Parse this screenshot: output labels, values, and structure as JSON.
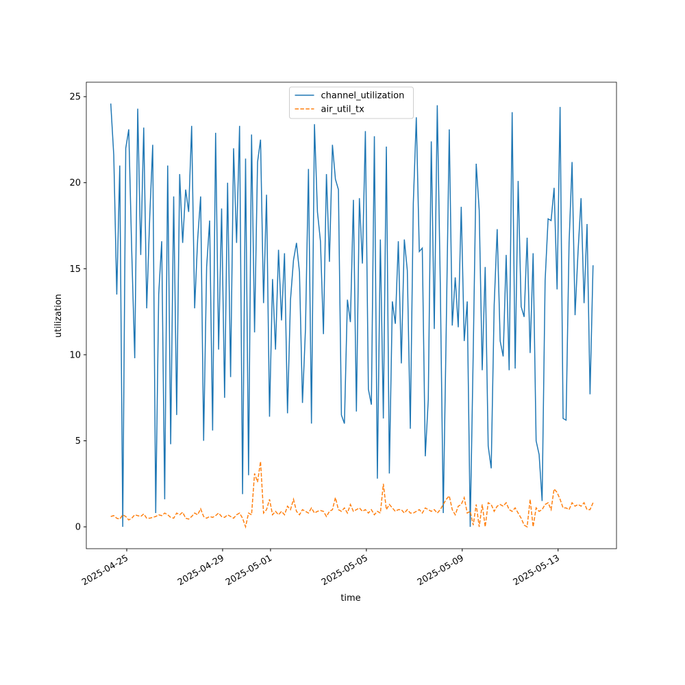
{
  "chart_data": {
    "type": "line",
    "xlabel": "time",
    "ylabel": "utilization",
    "x": [
      "2025-04-24T08:00",
      "2025-04-24T11:00",
      "2025-04-24T14:00",
      "2025-04-24T17:00",
      "2025-04-24T20:00",
      "2025-04-24T23:00",
      "2025-04-25T02:00",
      "2025-04-25T05:00",
      "2025-04-25T08:00",
      "2025-04-25T11:00",
      "2025-04-25T14:00",
      "2025-04-25T17:00",
      "2025-04-25T20:00",
      "2025-04-25T23:00",
      "2025-04-26T02:00",
      "2025-04-26T05:00",
      "2025-04-26T08:00",
      "2025-04-26T11:00",
      "2025-04-26T14:00",
      "2025-04-26T17:00",
      "2025-04-26T20:00",
      "2025-04-26T23:00",
      "2025-04-27T02:00",
      "2025-04-27T05:00",
      "2025-04-27T08:00",
      "2025-04-27T11:00",
      "2025-04-27T14:00",
      "2025-04-27T17:00",
      "2025-04-27T20:00",
      "2025-04-27T23:00",
      "2025-04-28T02:00",
      "2025-04-28T05:00",
      "2025-04-28T08:00",
      "2025-04-28T11:00",
      "2025-04-28T14:00",
      "2025-04-28T17:00",
      "2025-04-28T20:00",
      "2025-04-28T23:00",
      "2025-04-29T02:00",
      "2025-04-29T05:00",
      "2025-04-29T08:00",
      "2025-04-29T11:00",
      "2025-04-29T14:00",
      "2025-04-29T17:00",
      "2025-04-29T20:00",
      "2025-04-29T23:00",
      "2025-04-30T02:00",
      "2025-04-30T05:00",
      "2025-04-30T08:00",
      "2025-04-30T11:00",
      "2025-04-30T14:00",
      "2025-04-30T17:00",
      "2025-04-30T20:00",
      "2025-04-30T23:00",
      "2025-05-01T02:00",
      "2025-05-01T05:00",
      "2025-05-01T08:00",
      "2025-05-01T11:00",
      "2025-05-01T14:00",
      "2025-05-01T17:00",
      "2025-05-01T20:00",
      "2025-05-01T23:00",
      "2025-05-02T02:00",
      "2025-05-02T05:00",
      "2025-05-02T08:00",
      "2025-05-02T11:00",
      "2025-05-02T14:00",
      "2025-05-02T17:00",
      "2025-05-02T20:00",
      "2025-05-02T23:00",
      "2025-05-03T02:00",
      "2025-05-03T05:00",
      "2025-05-03T08:00",
      "2025-05-03T11:00",
      "2025-05-03T14:00",
      "2025-05-03T17:00",
      "2025-05-03T20:00",
      "2025-05-03T23:00",
      "2025-05-04T02:00",
      "2025-05-04T05:00",
      "2025-05-04T08:00",
      "2025-05-04T11:00",
      "2025-05-04T14:00",
      "2025-05-04T17:00",
      "2025-05-04T20:00",
      "2025-05-04T23:00",
      "2025-05-05T02:00",
      "2025-05-05T05:00",
      "2025-05-05T08:00",
      "2025-05-05T11:00",
      "2025-05-05T14:00",
      "2025-05-05T17:00",
      "2025-05-05T20:00",
      "2025-05-05T23:00",
      "2025-05-06T02:00",
      "2025-05-06T05:00",
      "2025-05-06T08:00",
      "2025-05-06T11:00",
      "2025-05-06T14:00",
      "2025-05-06T17:00",
      "2025-05-06T20:00",
      "2025-05-06T23:00",
      "2025-05-07T02:00",
      "2025-05-07T05:00",
      "2025-05-07T08:00",
      "2025-05-07T11:00",
      "2025-05-07T14:00",
      "2025-05-07T17:00",
      "2025-05-07T20:00",
      "2025-05-07T23:00",
      "2025-05-08T02:00",
      "2025-05-08T05:00",
      "2025-05-08T08:00",
      "2025-05-08T11:00",
      "2025-05-08T14:00",
      "2025-05-08T17:00",
      "2025-05-08T20:00",
      "2025-05-08T23:00",
      "2025-05-09T02:00",
      "2025-05-09T05:00",
      "2025-05-09T08:00",
      "2025-05-09T11:00",
      "2025-05-09T14:00",
      "2025-05-09T17:00",
      "2025-05-09T20:00",
      "2025-05-09T23:00",
      "2025-05-10T02:00",
      "2025-05-10T05:00",
      "2025-05-10T08:00",
      "2025-05-10T11:00",
      "2025-05-10T14:00",
      "2025-05-10T17:00",
      "2025-05-10T20:00",
      "2025-05-10T23:00",
      "2025-05-11T02:00",
      "2025-05-11T05:00",
      "2025-05-11T08:00",
      "2025-05-11T11:00",
      "2025-05-11T14:00",
      "2025-05-11T17:00",
      "2025-05-11T20:00",
      "2025-05-11T23:00",
      "2025-05-12T02:00",
      "2025-05-12T05:00",
      "2025-05-12T08:00",
      "2025-05-12T11:00",
      "2025-05-12T14:00",
      "2025-05-12T17:00",
      "2025-05-12T20:00",
      "2025-05-12T23:00",
      "2025-05-13T02:00",
      "2025-05-13T05:00",
      "2025-05-13T08:00",
      "2025-05-13T11:00",
      "2025-05-13T14:00",
      "2025-05-13T17:00",
      "2025-05-13T20:00",
      "2025-05-13T23:00",
      "2025-05-14T02:00",
      "2025-05-14T05:00",
      "2025-05-14T08:00",
      "2025-05-14T11:00"
    ],
    "series": [
      {
        "name": "channel_utilization",
        "color": "#1f77b4",
        "linestyle": "solid",
        "values": [
          24.6,
          21.6,
          13.5,
          21,
          0,
          22,
          23.1,
          16,
          9.8,
          24.3,
          15.8,
          23.2,
          12.7,
          18,
          22.2,
          0.8,
          13.5,
          16.6,
          1.6,
          21,
          4.8,
          19.2,
          6.5,
          20.5,
          16.5,
          19.6,
          18.3,
          23.3,
          12.7,
          16.7,
          19.2,
          5,
          15.1,
          17.8,
          5.6,
          22.9,
          10.3,
          18.5,
          7.5,
          20,
          8.7,
          22,
          16.5,
          23.3,
          1.9,
          21.4,
          3,
          22.8,
          11.3,
          21.2,
          22.5,
          13,
          19.3,
          6.4,
          14.4,
          10.3,
          16.1,
          12,
          15.9,
          6.6,
          13.2,
          15.5,
          16.5,
          14.8,
          7.2,
          11.5,
          20.8,
          6,
          23.4,
          18.3,
          16.6,
          11.2,
          20.5,
          15.4,
          22.2,
          20.2,
          19.6,
          6.5,
          6,
          13.2,
          11.9,
          19,
          6.7,
          19.1,
          15.3,
          23,
          8,
          7.1,
          22.7,
          2.8,
          16.7,
          6.3,
          22.1,
          3.1,
          13.1,
          11.8,
          16.6,
          9.5,
          16.7,
          14.9,
          5.7,
          18.8,
          23.8,
          16,
          16.2,
          4.1,
          7.4,
          22.4,
          11.5,
          24.5,
          14.2,
          0.8,
          11.6,
          23.1,
          11.7,
          14.5,
          11.6,
          18.6,
          10.8,
          13.1,
          0,
          10.1,
          21.1,
          18.4,
          9.1,
          15.1,
          4.7,
          3.4,
          12.9,
          17.3,
          10.8,
          9.9,
          15.8,
          9.1,
          24.1,
          9.2,
          20.1,
          12.8,
          12.2,
          16.8,
          10.1,
          15.9,
          5,
          4.2,
          1.5,
          14.3,
          17.9,
          17.8,
          19.7,
          13.8,
          24.4,
          6.3,
          6.2,
          16.5,
          21.2,
          12.3,
          16,
          19.1,
          13,
          17.6,
          7.7,
          15.2
        ]
      },
      {
        "name": "air_util_tx",
        "color": "#ff7f0e",
        "linestyle": "dashed",
        "values": [
          0.6,
          0.65,
          0.5,
          0.45,
          0.7,
          0.6,
          0.4,
          0.5,
          0.7,
          0.65,
          0.6,
          0.75,
          0.5,
          0.5,
          0.55,
          0.6,
          0.7,
          0.65,
          0.8,
          0.7,
          0.55,
          0.5,
          0.8,
          0.7,
          0.85,
          0.5,
          0.45,
          0.6,
          0.8,
          0.7,
          1.05,
          0.6,
          0.5,
          0.6,
          0.55,
          0.65,
          0.8,
          0.6,
          0.55,
          0.7,
          0.6,
          0.5,
          0.7,
          0.8,
          0.5,
          0,
          0.8,
          0.7,
          3.1,
          2.6,
          3.8,
          0.8,
          1.0,
          1.6,
          0.7,
          0.9,
          0.7,
          0.9,
          0.7,
          1.2,
          1.0,
          1.6,
          0.9,
          0.7,
          1.0,
          0.9,
          0.8,
          1.1,
          0.8,
          0.9,
          0.95,
          0.9,
          0.6,
          0.9,
          1.0,
          1.7,
          1.0,
          0.9,
          1.1,
          0.8,
          1.3,
          0.9,
          1.0,
          1.1,
          0.9,
          1.0,
          0.8,
          1.0,
          0.7,
          0.9,
          0.8,
          2.5,
          1.0,
          1.3,
          1.1,
          0.9,
          1.0,
          1.0,
          0.8,
          1.0,
          0.8,
          0.8,
          0.9,
          1.0,
          0.8,
          1.1,
          1.0,
          0.9,
          1.0,
          0.8,
          1.0,
          1.3,
          1.6,
          1.8,
          1.0,
          0.7,
          1.2,
          1.3,
          1.7,
          0.8,
          0.9,
          0.1,
          1.3,
          0,
          1.3,
          0,
          1.4,
          1.3,
          0.9,
          1.2,
          1.3,
          1.2,
          1.4,
          1.0,
          0.9,
          1.1,
          0.8,
          0.5,
          0.1,
          0,
          1.6,
          0,
          1.1,
          0.9,
          1.0,
          1.3,
          1.4,
          1.0,
          2.2,
          2.0,
          1.6,
          1.1,
          1.1,
          1.0,
          1.4,
          1.2,
          1.3,
          1.2,
          1.4,
          1.0,
          1.0,
          1.4
        ]
      }
    ],
    "xlim": [
      "2025-04-23T07:30",
      "2025-05-15T10:30"
    ],
    "xticks": [
      "2025-04-25",
      "2025-04-29",
      "2025-05-01",
      "2025-05-05",
      "2025-05-09",
      "2025-05-13"
    ],
    "ylim": [
      -1.27,
      25.84
    ],
    "yticks": [
      0,
      5,
      10,
      15,
      20,
      25
    ],
    "grid": false,
    "legend": "upper center"
  }
}
